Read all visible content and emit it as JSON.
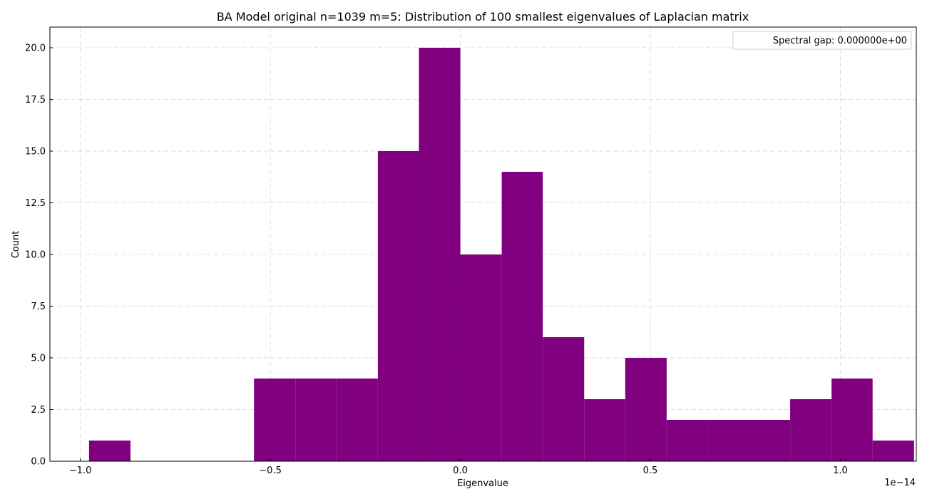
{
  "chart_data": {
    "type": "bar",
    "title": "BA Model original n=1039 m=5: Distribution of 100 smallest eigenvalues of Laplacian matrix",
    "xlabel": "Eigenvalue",
    "ylabel": "Count",
    "x_offset_label": "1e−14",
    "xlim": [
      -1.08,
      1.2
    ],
    "ylim": [
      0,
      21
    ],
    "xticks": [
      -1.0,
      -0.5,
      0.0,
      0.5,
      1.0
    ],
    "xtick_labels": [
      "−1.0",
      "−0.5",
      "0.0",
      "0.5",
      "1.0"
    ],
    "yticks": [
      0,
      2.5,
      5,
      7.5,
      10,
      12.5,
      15,
      17.5,
      20
    ],
    "ytick_labels": [
      "0.0",
      "2.5",
      "5.0",
      "7.5",
      "10.0",
      "12.5",
      "15.0",
      "17.5",
      "20.0"
    ],
    "grid": true,
    "bar_color": "#800080",
    "bins": [
      {
        "x0": -0.977,
        "x1": -0.868,
        "count": 1
      },
      {
        "x0": -0.868,
        "x1": -0.76,
        "count": 0
      },
      {
        "x0": -0.76,
        "x1": -0.651,
        "count": 0
      },
      {
        "x0": -0.651,
        "x1": -0.543,
        "count": 0
      },
      {
        "x0": -0.543,
        "x1": -0.434,
        "count": 4
      },
      {
        "x0": -0.434,
        "x1": -0.326,
        "count": 4
      },
      {
        "x0": -0.326,
        "x1": -0.217,
        "count": 4
      },
      {
        "x0": -0.217,
        "x1": -0.109,
        "count": 15
      },
      {
        "x0": -0.109,
        "x1": 0.0,
        "count": 20
      },
      {
        "x0": 0.0,
        "x1": 0.109,
        "count": 10
      },
      {
        "x0": 0.109,
        "x1": 0.217,
        "count": 14
      },
      {
        "x0": 0.217,
        "x1": 0.326,
        "count": 6
      },
      {
        "x0": 0.326,
        "x1": 0.434,
        "count": 3
      },
      {
        "x0": 0.434,
        "x1": 0.543,
        "count": 5
      },
      {
        "x0": 0.543,
        "x1": 0.651,
        "count": 2
      },
      {
        "x0": 0.651,
        "x1": 0.76,
        "count": 2
      },
      {
        "x0": 0.76,
        "x1": 0.868,
        "count": 2
      },
      {
        "x0": 0.868,
        "x1": 0.977,
        "count": 3
      },
      {
        "x0": 0.977,
        "x1": 1.085,
        "count": 4
      },
      {
        "x0": 1.085,
        "x1": 1.194,
        "count": 1
      }
    ],
    "legend": {
      "text": "Spectral gap: 0.000000e+00",
      "placement": "top-right"
    }
  }
}
